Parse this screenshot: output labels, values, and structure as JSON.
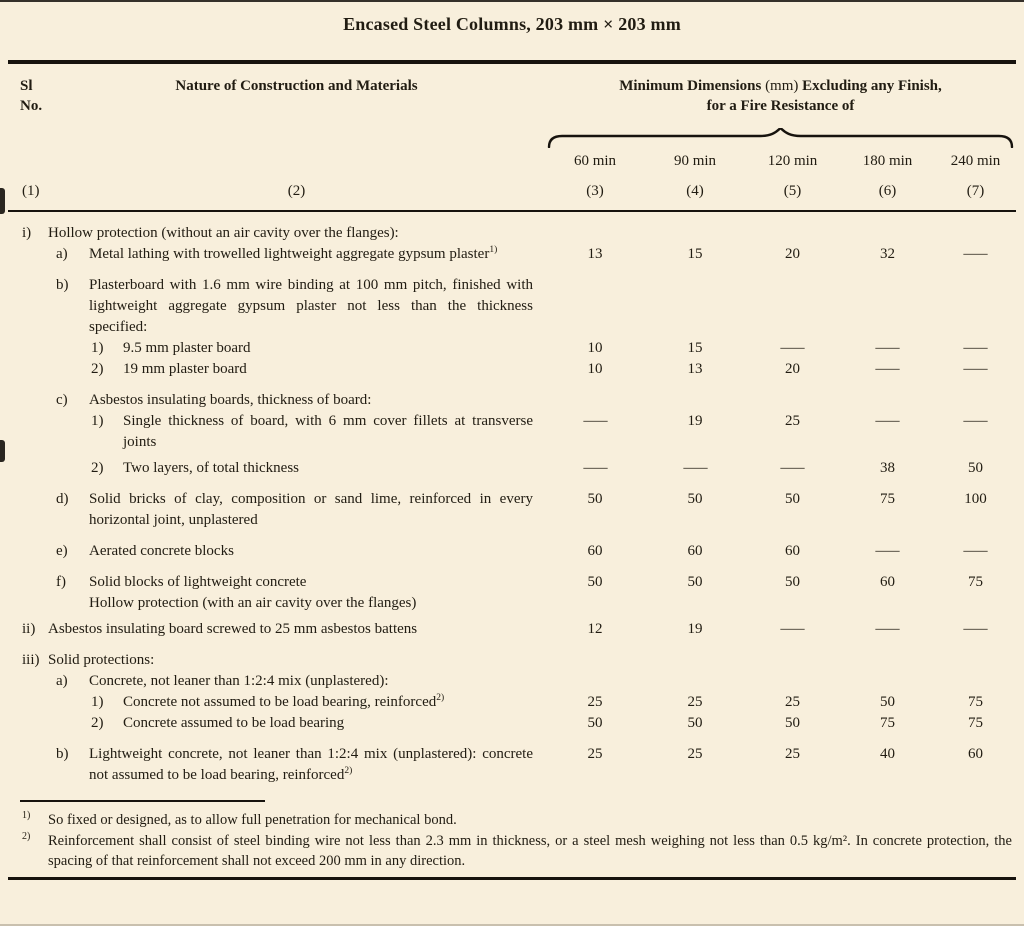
{
  "page": {
    "background": "#f8efdc",
    "ink": "#211c12",
    "rule_color": "#17130e"
  },
  "title": "Encased Steel Columns, 203 mm × 203 mm",
  "header": {
    "sl_line1": "Sl",
    "sl_line2": "No.",
    "nature": "Nature of Construction and Materials",
    "dims_bold_prefix": "Minimum Dimensions",
    "dims_unit": "(mm)",
    "dims_bold_suffix": "Excluding any Finish,",
    "dims_line2": "for a Fire Resistance of",
    "time_cols": [
      "60 min",
      "90 min",
      "120 min",
      "180 min",
      "240 min"
    ],
    "col_numbers": [
      "(1)",
      "(2)",
      "(3)",
      "(4)",
      "(5)",
      "(6)",
      "(7)"
    ]
  },
  "table": {
    "rows": [
      {
        "sl": "i)",
        "level": 0,
        "prefix": "",
        "text": "Hollow protection (without an air cavity over the flanges):",
        "sup": "",
        "values": null,
        "gap": 0
      },
      {
        "sl": "",
        "level": 1,
        "prefix": "a)",
        "text": "Metal lathing with trowelled lightweight aggregate gypsum plaster",
        "sup": "1)",
        "values": [
          "13",
          "15",
          "20",
          "32",
          "—"
        ],
        "gap": 0
      },
      {
        "sl": "",
        "level": 1,
        "prefix": "b)",
        "text": "Plasterboard with 1.6 mm wire binding at 100 mm pitch, finished with lightweight aggregate gypsum plaster not less than the thickness specified:",
        "sup": "",
        "values": null,
        "gap": 1
      },
      {
        "sl": "",
        "level": 2,
        "prefix": "1)",
        "text": "9.5 mm plaster board",
        "sup": "",
        "values": [
          "10",
          "15",
          "—",
          "—",
          "—"
        ],
        "gap": 0
      },
      {
        "sl": "",
        "level": 2,
        "prefix": "2)",
        "text": "19 mm plaster board",
        "sup": "",
        "values": [
          "10",
          "13",
          "20",
          "—",
          "—"
        ],
        "gap": 0
      },
      {
        "sl": "",
        "level": 1,
        "prefix": "c)",
        "text": "Asbestos insulating boards, thickness of board:",
        "sup": "",
        "values": null,
        "gap": 1
      },
      {
        "sl": "",
        "level": 2,
        "prefix": "1)",
        "text": "Single thickness of board, with 6 mm cover fillets at transverse joints",
        "sup": "",
        "values": [
          "—",
          "19",
          "25",
          "—",
          "—"
        ],
        "gap": 0
      },
      {
        "sl": "",
        "level": 2,
        "prefix": "2)",
        "text": "Two layers, of total thickness",
        "sup": "",
        "values": [
          "—",
          "—",
          "—",
          "38",
          "50"
        ],
        "gap": 2
      },
      {
        "sl": "",
        "level": 1,
        "prefix": "d)",
        "text": "Solid bricks of clay, composition or sand lime, reinforced in every horizontal joint, unplastered",
        "sup": "",
        "values": [
          "50",
          "50",
          "50",
          "75",
          "100"
        ],
        "gap": 1
      },
      {
        "sl": "",
        "level": 1,
        "prefix": "e)",
        "text": "Aerated concrete blocks",
        "sup": "",
        "values": [
          "60",
          "60",
          "60",
          "—",
          "—"
        ],
        "gap": 1
      },
      {
        "sl": "",
        "level": 1,
        "prefix": "f)",
        "text": "Solid blocks of lightweight concrete",
        "sup": "",
        "extra": "Hollow protection (with an air cavity over the flanges)",
        "values": [
          "50",
          "50",
          "50",
          "60",
          "75"
        ],
        "gap": 1
      },
      {
        "sl": "ii)",
        "level": 0,
        "prefix": "",
        "text": "Asbestos insulating board screwed to 25 mm asbestos battens",
        "sup": "",
        "values": [
          "12",
          "19",
          "—",
          "—",
          "—"
        ],
        "gap": 2
      },
      {
        "sl": "iii)",
        "level": 0,
        "prefix": "",
        "text": "Solid protections:",
        "sup": "",
        "values": null,
        "gap": 1
      },
      {
        "sl": "",
        "level": 1,
        "prefix": "a)",
        "text": "Concrete, not leaner than 1:2:4 mix (unplastered):",
        "sup": "",
        "values": null,
        "gap": 0
      },
      {
        "sl": "",
        "level": 2,
        "prefix": "1)",
        "text": "Concrete not assumed to be load bearing, reinforced",
        "sup": "2)",
        "values": [
          "25",
          "25",
          "25",
          "50",
          "75"
        ],
        "gap": 0
      },
      {
        "sl": "",
        "level": 2,
        "prefix": "2)",
        "text": "Concrete assumed to be load bearing",
        "sup": "",
        "values": [
          "50",
          "50",
          "50",
          "75",
          "75"
        ],
        "gap": 0
      },
      {
        "sl": "",
        "level": 1,
        "prefix": "b)",
        "text": "Lightweight concrete, not leaner than 1:2:4 mix (unplastered): concrete not assumed to be load bearing, reinforced",
        "sup": "2)",
        "values": [
          "25",
          "25",
          "25",
          "40",
          "60"
        ],
        "gap": 1
      }
    ]
  },
  "footnotes": [
    {
      "sup": "1)",
      "text": "So fixed or designed, as to allow full penetration for mechanical bond."
    },
    {
      "sup": "2)",
      "text": "Reinforcement shall consist of steel binding wire not less than 2.3 mm in thickness, or a steel mesh weighing not less than 0.5 kg/m². In concrete protection, the spacing of that reinforcement shall not exceed 200 mm in any direction."
    }
  ]
}
